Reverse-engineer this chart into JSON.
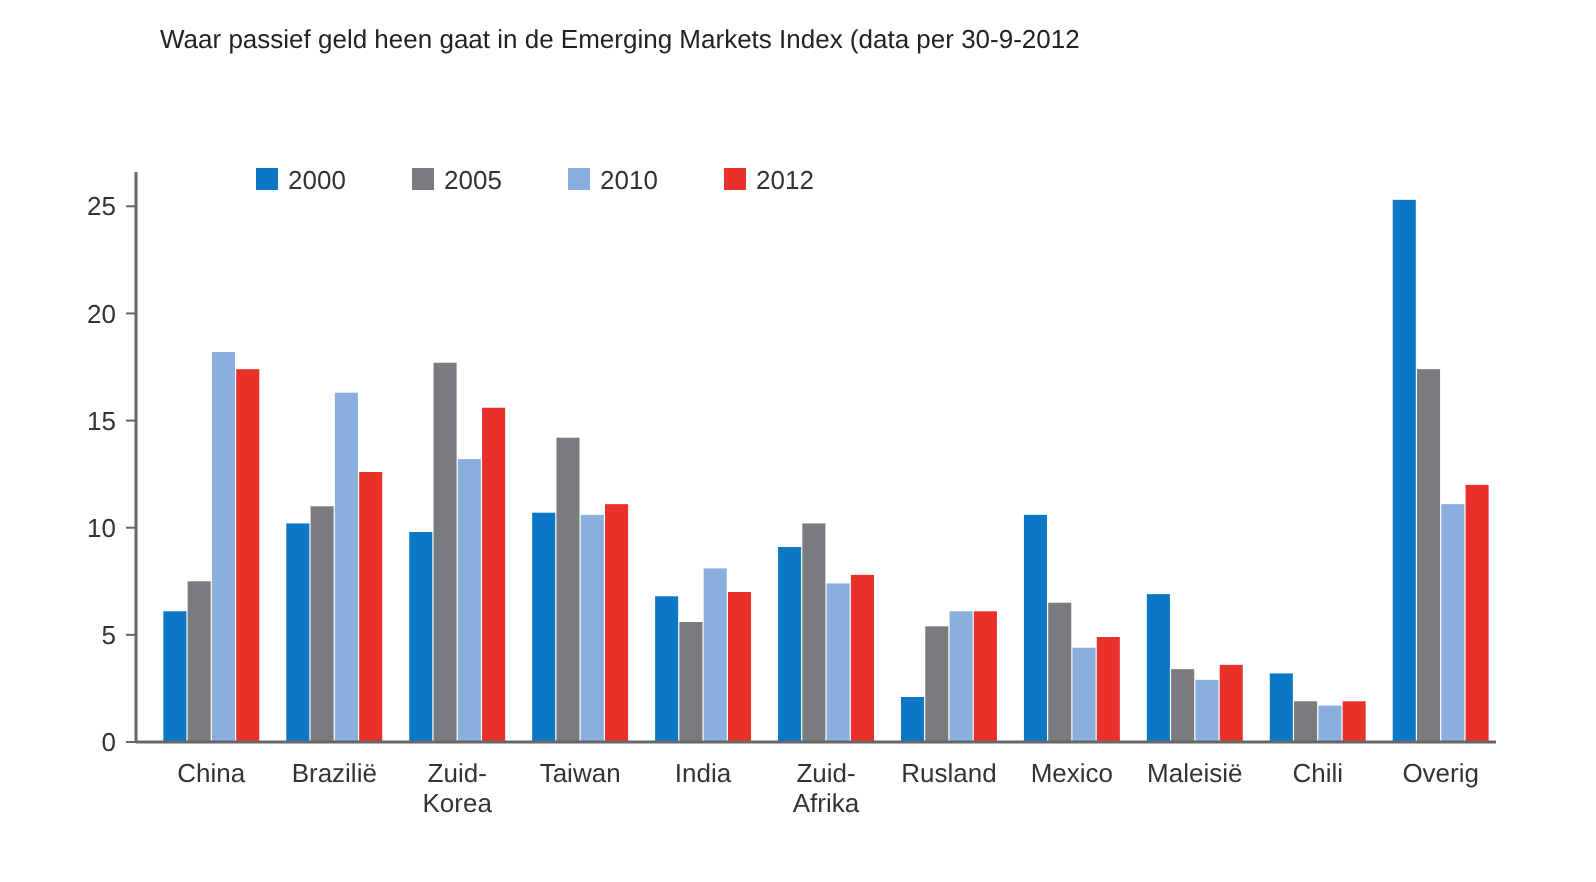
{
  "chart_data": {
    "type": "bar",
    "title": "Waar passief geld heen gaat in de Emerging Markets Index (data per 30-9-2012",
    "categories": [
      "China",
      "Brazilië",
      "Zuid-Korea",
      "Taiwan",
      "India",
      "Zuid-Afrika",
      "Rusland",
      "Mexico",
      "Maleisië",
      "Chili",
      "Overig"
    ],
    "series": [
      {
        "name": "2000",
        "color": "#0a78c4",
        "values": [
          6.1,
          10.2,
          9.8,
          10.7,
          6.8,
          9.1,
          2.1,
          10.6,
          6.9,
          3.2,
          25.3
        ]
      },
      {
        "name": "2005",
        "color": "#7a7b7f",
        "values": [
          7.5,
          11.0,
          17.7,
          14.2,
          5.6,
          10.2,
          5.4,
          6.5,
          3.4,
          1.9,
          17.4
        ]
      },
      {
        "name": "2010",
        "color": "#8aaede",
        "values": [
          18.2,
          16.3,
          13.2,
          10.6,
          8.1,
          7.4,
          6.1,
          4.4,
          2.9,
          1.7,
          11.1
        ]
      },
      {
        "name": "2012",
        "color": "#e8312a",
        "values": [
          17.4,
          12.6,
          15.6,
          11.1,
          7.0,
          7.8,
          6.1,
          4.9,
          3.6,
          1.9,
          12.0
        ]
      }
    ],
    "ylim": [
      0,
      26.6
    ],
    "yticks": [
      0,
      5,
      10,
      15,
      20,
      25
    ],
    "grid": false,
    "legend": "top left"
  }
}
